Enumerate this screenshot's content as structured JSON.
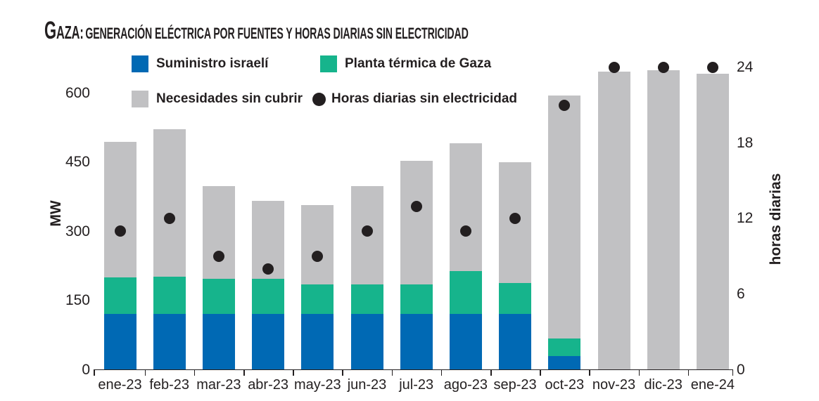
{
  "header": {
    "title_prefix": "GAZA:",
    "title_rest": "GENERACIÓN ELÉCTRICA POR FUENTES Y HORAS DIARIAS SIN ELECTRICIDAD"
  },
  "colors": {
    "israeli": "#0069b4",
    "gpp": "#16b48c",
    "unmet": "#c1c1c3",
    "dot": "#231f20",
    "text": "#231f20"
  },
  "legend": {
    "israeli": "Suministro israelí",
    "gpp": "Planta térmica de Gaza",
    "unmet": "Necesidades sin cubrir",
    "hours": "Horas diarias sin electricidad"
  },
  "chart_data": {
    "type": "bar",
    "stacked": true,
    "title": "Gaza: generación eléctrica por fuentes y horas diarias sin electricidad",
    "categories": [
      "ene-23",
      "feb-23",
      "mar-23",
      "abr-23",
      "may-23",
      "jun-23",
      "jul-23",
      "ago-23",
      "sep-23",
      "oct-23",
      "nov-23",
      "dic-23",
      "ene-24"
    ],
    "series": [
      {
        "name": "Suministro israelí",
        "color_key": "israeli",
        "values": [
          120,
          120,
          120,
          120,
          120,
          120,
          120,
          120,
          120,
          28,
          0,
          0,
          0
        ]
      },
      {
        "name": "Planta térmica de Gaza",
        "color_key": "gpp",
        "values": [
          78,
          80,
          76,
          76,
          63,
          64,
          64,
          93,
          67,
          38,
          0,
          0,
          0
        ]
      },
      {
        "name": "Necesidades sin cubrir",
        "color_key": "unmet",
        "values": [
          294,
          320,
          200,
          169,
          173,
          212,
          268,
          277,
          261,
          527,
          645,
          648,
          640
        ]
      }
    ],
    "points": {
      "name": "Horas diarias sin electricidad",
      "axis": "right",
      "values": [
        11,
        12,
        9,
        8,
        9,
        11,
        13,
        11,
        12,
        21,
        24,
        24,
        24
      ]
    },
    "left_axis": {
      "label": "MW",
      "ticks": [
        0,
        150,
        300,
        450,
        600
      ],
      "range": [
        0,
        673
      ]
    },
    "right_axis": {
      "label": "horas diarias",
      "ticks": [
        0,
        6,
        12,
        18,
        24
      ],
      "range": [
        0,
        24.61
      ]
    },
    "grid": false,
    "legend_position": "top"
  }
}
